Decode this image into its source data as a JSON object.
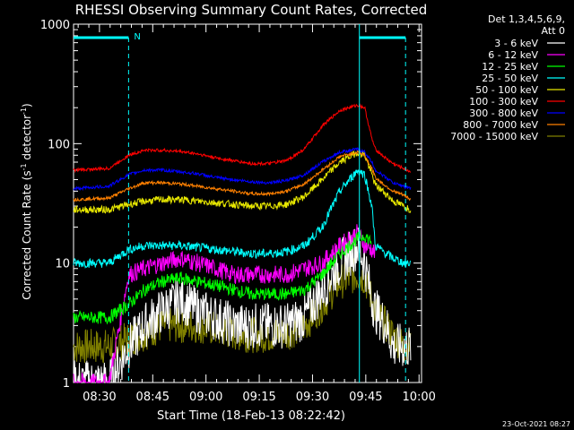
{
  "chart_data": {
    "type": "line",
    "title": "RHESSI Observing Summary Count Rates, Corrected",
    "xlabel": "Start Time (18-Feb-13 08:22:42)",
    "ylabel_main": "Corrected Count Rate (s",
    "ylabel_sup1": "-1",
    "ylabel_mid": " detector",
    "ylabel_sup2": "-1",
    "ylabel_end": ")",
    "footer": "23-Oct-2021 08:27",
    "y_scale": "log",
    "ylim": [
      1,
      1000
    ],
    "xlim_minutes": [
      0,
      98
    ],
    "y_ticks": [
      {
        "value": 1,
        "label": "1"
      },
      {
        "value": 10,
        "label": "10"
      },
      {
        "value": 100,
        "label": "100"
      },
      {
        "value": 1000,
        "label": "1000"
      }
    ],
    "x_ticks": [
      {
        "minute": 7.3,
        "label": "08:30"
      },
      {
        "minute": 22.3,
        "label": "08:45"
      },
      {
        "minute": 37.3,
        "label": "09:00"
      },
      {
        "minute": 52.3,
        "label": "09:15"
      },
      {
        "minute": 67.3,
        "label": "09:30"
      },
      {
        "minute": 82.3,
        "label": "09:45"
      },
      {
        "minute": 97.3,
        "label": "10:00"
      }
    ],
    "legend_header": [
      "Det 1,3,4,5,6,9,",
      "Att 0"
    ],
    "legend_position": "top-right, outside plot",
    "night_markers": [
      {
        "minute": 0,
        "to": 15.5,
        "label": "N"
      },
      {
        "minute": 80.5,
        "to": 93.5,
        "label": ""
      }
    ],
    "night_label": "N",
    "series": [
      {
        "name": "3 - 6 keV",
        "color": "#ffffff",
        "key": "s0"
      },
      {
        "name": "6 - 12 keV",
        "color": "#ff00ff",
        "key": "s1"
      },
      {
        "name": "12 - 25 keV",
        "color": "#00ff00",
        "key": "s2"
      },
      {
        "name": "25 - 50 keV",
        "color": "#00ffff",
        "key": "s3"
      },
      {
        "name": "50 - 100 keV",
        "color": "#e8e800",
        "key": "s4"
      },
      {
        "name": "100 - 300 keV",
        "color": "#ff0000",
        "key": "s5"
      },
      {
        "name": "300 - 800 keV",
        "color": "#0000ff",
        "key": "s6"
      },
      {
        "name": "800 - 7000 keV",
        "color": "#ff8000",
        "key": "s7"
      },
      {
        "name": "7000 - 15000 keV",
        "color": "#808000",
        "key": "s8"
      }
    ],
    "points_minutes": [
      0,
      10,
      15.5,
      20,
      25,
      30,
      35,
      40,
      45,
      50,
      55,
      60,
      65,
      70,
      75,
      80,
      82,
      84,
      85,
      88,
      90,
      93,
      95
    ],
    "curves": {
      "s0": [
        1,
        1,
        2,
        3,
        4,
        5,
        4,
        3.5,
        3,
        3,
        3,
        3,
        3.5,
        6,
        10,
        14,
        10,
        5,
        4,
        3,
        2,
        2,
        2
      ],
      "s1": [
        1,
        1,
        8,
        9,
        10,
        11,
        10,
        9,
        8,
        8,
        8,
        8,
        9,
        10,
        14,
        18,
        14,
        13,
        12,
        null,
        null,
        null,
        null
      ],
      "s2": [
        3.5,
        3.5,
        4.5,
        6,
        7,
        7.5,
        7,
        6.5,
        6,
        5.5,
        5.5,
        5.5,
        6,
        8,
        12,
        16,
        17,
        15,
        null,
        null,
        null,
        null,
        null
      ],
      "s3": [
        10,
        10,
        13,
        14,
        14,
        14,
        13.5,
        13,
        12.5,
        12,
        12,
        12.5,
        14,
        20,
        40,
        60,
        55,
        30,
        14,
        12,
        11,
        10,
        10
      ],
      "s4": [
        28,
        28,
        31,
        33,
        34,
        34,
        33,
        32,
        31,
        30,
        30,
        31,
        36,
        50,
        70,
        85,
        80,
        55,
        45,
        38,
        33,
        30,
        28
      ],
      "s5": [
        60,
        62,
        80,
        88,
        88,
        86,
        82,
        76,
        72,
        68,
        68,
        72,
        90,
        140,
        190,
        210,
        200,
        110,
        90,
        75,
        68,
        62,
        58
      ],
      "s6": [
        42,
        44,
        55,
        60,
        60,
        58,
        56,
        52,
        50,
        48,
        47,
        49,
        55,
        70,
        85,
        90,
        85,
        70,
        60,
        52,
        47,
        44,
        42
      ],
      "s7": [
        34,
        35,
        42,
        47,
        47,
        46,
        44,
        42,
        40,
        38,
        38,
        40,
        46,
        60,
        78,
        85,
        80,
        62,
        52,
        44,
        40,
        37,
        34
      ],
      "s8": [
        2,
        2,
        2.3,
        2.6,
        3,
        3,
        3,
        2.8,
        2.6,
        2.5,
        2.5,
        2.6,
        3,
        4.5,
        7,
        8,
        7.5,
        5,
        4,
        3,
        2.5,
        2,
        2
      ]
    }
  }
}
